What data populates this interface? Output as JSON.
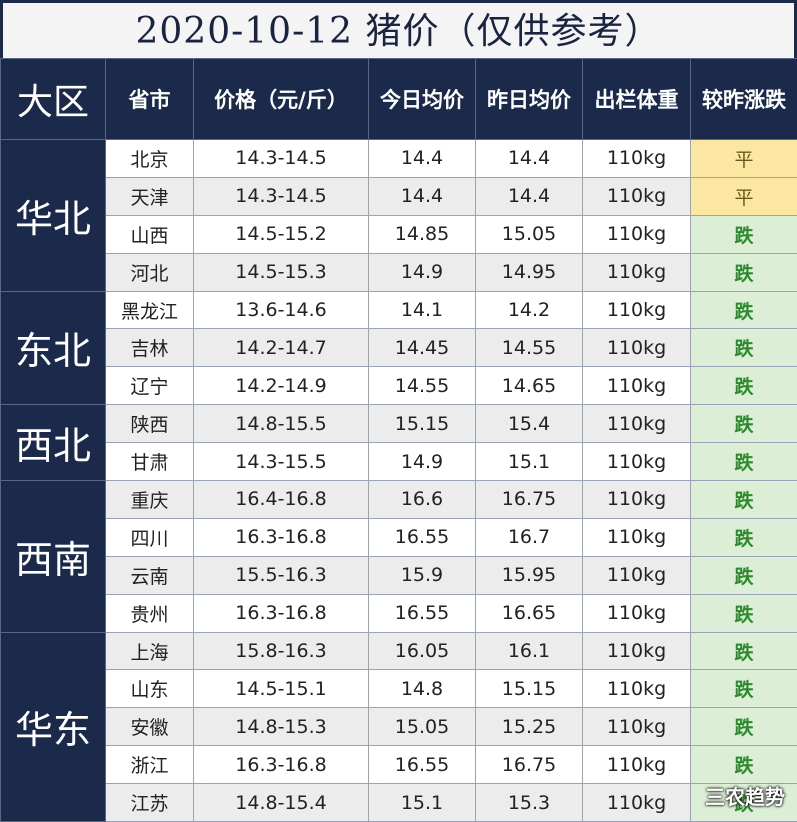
{
  "title": "2020-10-12 猪价（仅供参考）",
  "table": {
    "headers": [
      "大区",
      "省市",
      "价格（元/斤）",
      "今日均价",
      "昨日均价",
      "出栏体重",
      "较昨涨跌"
    ],
    "groups": [
      {
        "region": "华北",
        "rows": [
          [
            "北京",
            "14.3-14.5",
            14.4,
            14.4,
            "110kg",
            "平"
          ],
          [
            "天津",
            "14.3-14.5",
            14.4,
            14.4,
            "110kg",
            "平"
          ],
          [
            "山西",
            "14.5-15.2",
            14.85,
            15.05,
            "110kg",
            "跌"
          ],
          [
            "河北",
            "14.5-15.3",
            14.9,
            14.95,
            "110kg",
            "跌"
          ]
        ]
      },
      {
        "region": "东北",
        "rows": [
          [
            "黑龙江",
            "13.6-14.6",
            14.1,
            14.2,
            "110kg",
            "跌"
          ],
          [
            "吉林",
            "14.2-14.7",
            14.45,
            14.55,
            "110kg",
            "跌"
          ],
          [
            "辽宁",
            "14.2-14.9",
            14.55,
            14.65,
            "110kg",
            "跌"
          ]
        ]
      },
      {
        "region": "西北",
        "rows": [
          [
            "陕西",
            "14.8-15.5",
            15.15,
            15.4,
            "110kg",
            "跌"
          ],
          [
            "甘肃",
            "14.3-15.5",
            14.9,
            15.1,
            "110kg",
            "跌"
          ]
        ]
      },
      {
        "region": "西南",
        "rows": [
          [
            "重庆",
            "16.4-16.8",
            16.6,
            16.75,
            "110kg",
            "跌"
          ],
          [
            "四川",
            "16.3-16.8",
            16.55,
            16.7,
            "110kg",
            "跌"
          ],
          [
            "云南",
            "15.5-16.3",
            15.9,
            15.95,
            "110kg",
            "跌"
          ],
          [
            "贵州",
            "16.3-16.8",
            16.55,
            16.65,
            "110kg",
            "跌"
          ]
        ]
      },
      {
        "region": "华东",
        "rows": [
          [
            "上海",
            "15.8-16.3",
            16.05,
            16.1,
            "110kg",
            "跌"
          ],
          [
            "山东",
            "14.5-15.1",
            14.8,
            15.15,
            "110kg",
            "跌"
          ],
          [
            "安徽",
            "14.8-15.3",
            15.05,
            15.25,
            "110kg",
            "跌"
          ],
          [
            "浙江",
            "16.3-16.8",
            16.55,
            16.75,
            "110kg",
            "跌"
          ],
          [
            "江苏",
            "14.8-15.4",
            15.1,
            15.3,
            "110kg",
            "跌"
          ]
        ]
      }
    ]
  },
  "watermark": "三农趋势"
}
